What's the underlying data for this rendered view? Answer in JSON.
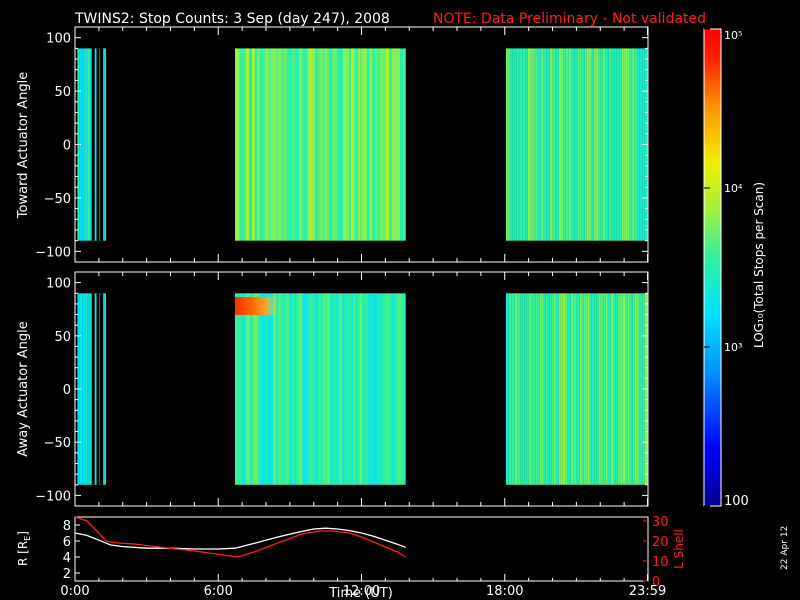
{
  "header": {
    "title": "TWINS2: Stop Counts:  3 Sep (day 247), 2008",
    "note": "NOTE: Data Preliminary - Not validated",
    "note_color": "#ff2020"
  },
  "footer": {
    "date_stamp": "22 Apr 12"
  },
  "colorbar": {
    "label": "LOG₁₀(Total Stops per Scan)",
    "ticks": [
      "10⁵",
      "10⁴",
      "10³",
      "100"
    ],
    "tick_values": [
      100000,
      10000,
      1000,
      100
    ],
    "range": [
      100,
      100000
    ],
    "scale": "log"
  },
  "chart_data": [
    {
      "type": "heatmap",
      "title": "",
      "ylabel": "Toward Actuator Angle",
      "xlabel": "",
      "x_range_hours": [
        0,
        24
      ],
      "y_range": [
        -110,
        110
      ],
      "y_data_range": [
        -90,
        90
      ],
      "yticks": [
        "100",
        "50",
        "0",
        "−50",
        "−100"
      ],
      "ytick_values": [
        100,
        50,
        0,
        -50,
        -100
      ],
      "color_scale": "log",
      "data_blocks_hours": [
        {
          "start": 0.1,
          "end": 1.3,
          "level_log10": 3.4
        },
        {
          "start": 6.7,
          "end": 13.85,
          "level_log10": 3.7
        },
        {
          "start": 18.05,
          "end": 23.99,
          "level_log10": 3.6
        }
      ]
    },
    {
      "type": "heatmap",
      "title": "",
      "ylabel": "Away Actuator Angle",
      "xlabel": "",
      "x_range_hours": [
        0,
        24
      ],
      "y_range": [
        -110,
        110
      ],
      "y_data_range": [
        -90,
        90
      ],
      "yticks": [
        "100",
        "50",
        "0",
        "−50",
        "−100"
      ],
      "ytick_values": [
        100,
        50,
        0,
        -50,
        -100
      ],
      "color_scale": "log",
      "hotspot": {
        "start_hour": 6.7,
        "end_hour": 8.5,
        "angle": 78,
        "level_log10": 4.9
      },
      "data_blocks_hours": [
        {
          "start": 0.1,
          "end": 1.3,
          "level_log10": 3.3
        },
        {
          "start": 6.7,
          "end": 13.85,
          "level_log10": 3.5
        },
        {
          "start": 18.05,
          "end": 23.99,
          "level_log10": 3.6
        }
      ]
    },
    {
      "type": "line",
      "title": "",
      "ylabel": "R [R",
      "ylabel_sub": "E",
      "ylabel_tail": "]",
      "ylabel_right": "L Shell",
      "xlabel": "Time (UT)",
      "xticks": [
        "0:00",
        "6:00",
        "12:00",
        "18:00",
        "23:59"
      ],
      "xtick_hours": [
        0,
        6,
        12,
        18,
        23.98
      ],
      "x_range_hours": [
        0,
        24
      ],
      "yticks_left": [
        "8",
        "6",
        "4",
        "2"
      ],
      "ytick_left_values": [
        8,
        6,
        4,
        2
      ],
      "ylim_left": [
        1,
        9
      ],
      "yticks_right": [
        "30",
        "20",
        "10",
        "0"
      ],
      "ytick_right_values": [
        30,
        20,
        10,
        0
      ],
      "ylim_right": [
        0,
        32
      ],
      "series": [
        {
          "axis": "left",
          "color": "#ffffff",
          "x": [
            0,
            0.5,
            1,
            1.5,
            2,
            3,
            4,
            5,
            6,
            6.7,
            7.5,
            8.5,
            9.5,
            10,
            10.5,
            11,
            11.5,
            12,
            12.5,
            13,
            13.5,
            13.85
          ],
          "y": [
            7.0,
            6.7,
            6.1,
            5.5,
            5.3,
            5.1,
            5.1,
            5.0,
            5.0,
            5.1,
            5.7,
            6.5,
            7.2,
            7.5,
            7.6,
            7.5,
            7.3,
            7.0,
            6.6,
            6.1,
            5.6,
            5.2
          ]
        },
        {
          "axis": "right",
          "color": "#ff2020",
          "x": [
            0,
            0.5,
            1,
            1.3,
            1.8,
            2.5,
            3.5,
            5,
            6.8,
            7.5,
            8.5,
            9.5,
            10.2,
            10.8,
            11.5,
            12,
            12.5,
            13,
            13.5,
            13.85
          ],
          "y": [
            33,
            30,
            24,
            20,
            19,
            18.5,
            17,
            15,
            12,
            14.5,
            19,
            23.5,
            25,
            25,
            24,
            22,
            19.5,
            17,
            14.5,
            12
          ]
        }
      ]
    }
  ]
}
